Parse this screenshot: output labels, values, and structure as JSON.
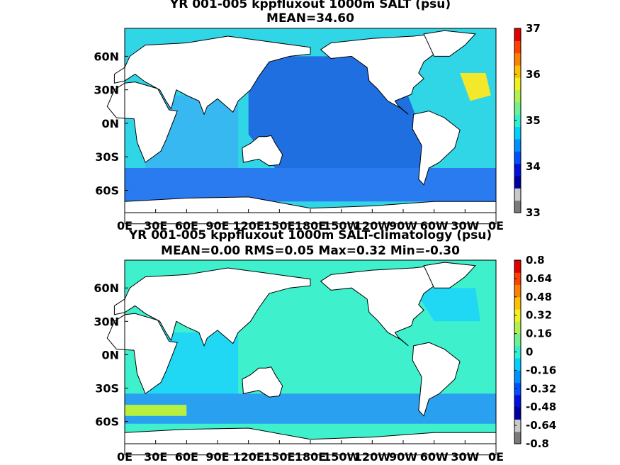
{
  "chart_data": [
    {
      "type": "heatmap",
      "title": "YR 001-005 kppfluxout 1000m SALT (psu)",
      "subtitle": "MEAN=34.60",
      "x_ticks": [
        "0E",
        "30E",
        "60E",
        "90E",
        "120E",
        "150E",
        "180E",
        "150W",
        "120W",
        "90W",
        "60W",
        "30W",
        "0E"
      ],
      "y_ticks": [
        "60N",
        "30N",
        "0N",
        "30S",
        "60S"
      ],
      "colorbar_ticks": [
        "37",
        "36",
        "35",
        "34",
        "33"
      ],
      "colorbar_range": [
        33,
        37
      ],
      "mean": 34.6,
      "colors": {
        "land": "#ffffff",
        "pacific": "#1f6fe0",
        "indian": "#38b8f0",
        "atlantic": "#30d6e6",
        "north_atlantic_high": "#f4e82a",
        "southern_ocean": "#2a7af0",
        "coast": "#000000"
      }
    },
    {
      "type": "heatmap",
      "title": "YR 001-005 kppfluxout 1000m SALT-climatology (psu)",
      "subtitle": "MEAN=0.00   RMS=0.05   Max=0.32   Min=-0.30",
      "x_ticks": [
        "0E",
        "30E",
        "60E",
        "90E",
        "120E",
        "150E",
        "180E",
        "150W",
        "120W",
        "90W",
        "60W",
        "30W",
        "0E"
      ],
      "y_ticks": [
        "60N",
        "30N",
        "0N",
        "30S",
        "60S"
      ],
      "colorbar_ticks": [
        "0.8",
        "0.64",
        "0.48",
        "0.32",
        "0.16",
        "0",
        "-0.16",
        "-0.32",
        "-0.48",
        "-0.64",
        "-0.8"
      ],
      "colorbar_range": [
        -0.8,
        0.8
      ],
      "mean": 0.0,
      "rms": 0.05,
      "max": 0.32,
      "min": -0.3,
      "colors": {
        "land": "#ffffff",
        "base": "#3ff0cc",
        "cyan": "#20d8f4",
        "yellow_green": "#b8f040",
        "blue": "#2aa0f0",
        "coast": "#000000"
      }
    }
  ],
  "colormap": [
    "#7a7a7a",
    "#c8c8c8",
    "#0000a0",
    "#0010e0",
    "#0050ff",
    "#0090ff",
    "#00d0ff",
    "#30f0d0",
    "#70f090",
    "#b0f050",
    "#f0f020",
    "#ffc000",
    "#ff8000",
    "#ff4000",
    "#e00000"
  ]
}
